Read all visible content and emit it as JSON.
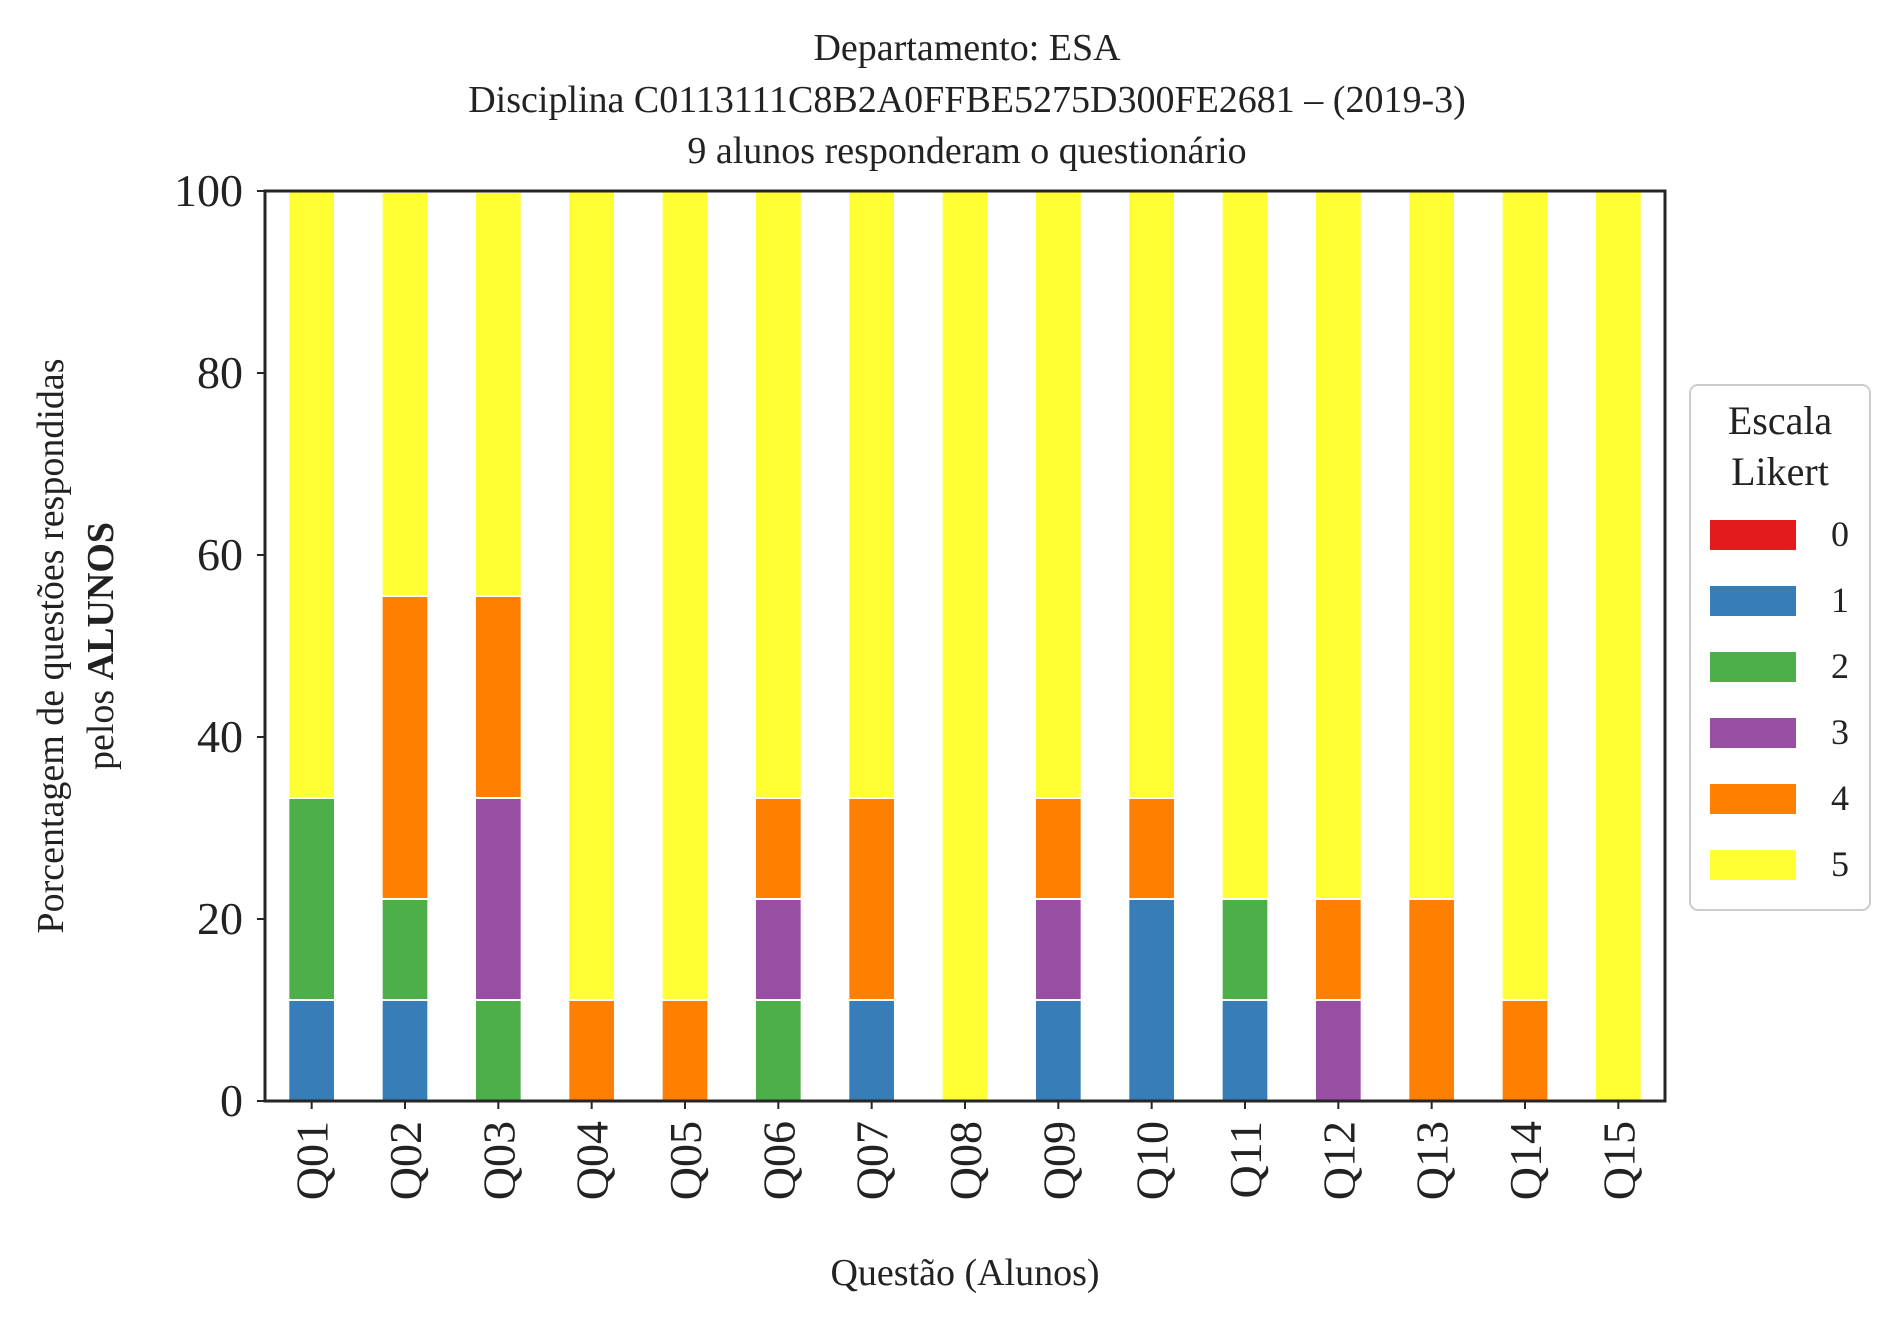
{
  "chart_data": {
    "type": "bar",
    "stacked": true,
    "title_lines": [
      "Departamento: ESA",
      "Disciplina C0113111C8B2A0FFBE5275D300FE2681 – (2019-3)",
      "9 alunos responderam o questionário"
    ],
    "xlabel": "Questão (Alunos)",
    "ylabel_line1": "Porcentagem de questões respondidas",
    "ylabel_line2_prefix": "pelos ",
    "ylabel_line2_bold": "ALUNOS",
    "ylim": [
      0,
      100
    ],
    "yticks": [
      0,
      20,
      40,
      60,
      80,
      100
    ],
    "grid": false,
    "categories": [
      "Q01",
      "Q02",
      "Q03",
      "Q04",
      "Q05",
      "Q06",
      "Q07",
      "Q08",
      "Q09",
      "Q10",
      "Q11",
      "Q12",
      "Q13",
      "Q14",
      "Q15"
    ],
    "legend": {
      "title_lines": [
        "Escala",
        "Likert"
      ],
      "placement": "right-center"
    },
    "series": [
      {
        "name": "0",
        "color": "#e41a1c",
        "values": [
          0,
          0,
          0,
          0,
          0,
          0,
          0,
          0,
          0,
          0,
          0,
          0,
          0,
          0,
          0
        ]
      },
      {
        "name": "1",
        "color": "#377eb8",
        "values": [
          11.1,
          11.1,
          0,
          0,
          0,
          0,
          11.1,
          0,
          11.1,
          22.2,
          11.1,
          0,
          0,
          0,
          0
        ]
      },
      {
        "name": "2",
        "color": "#4daf4a",
        "values": [
          22.2,
          11.1,
          11.1,
          0,
          0,
          11.1,
          0,
          0,
          0,
          0,
          11.1,
          0,
          0,
          0,
          0
        ]
      },
      {
        "name": "3",
        "color": "#984ea3",
        "values": [
          0,
          0,
          22.2,
          0,
          0,
          11.1,
          0,
          0,
          11.1,
          0,
          0,
          11.1,
          0,
          0,
          0
        ]
      },
      {
        "name": "4",
        "color": "#ff7f00",
        "values": [
          0,
          33.3,
          22.2,
          11.1,
          11.1,
          11.1,
          22.2,
          0,
          11.1,
          11.1,
          0,
          11.1,
          22.2,
          11.1,
          0
        ]
      },
      {
        "name": "5",
        "color": "#ffff33",
        "values": [
          66.7,
          44.4,
          44.4,
          88.9,
          88.9,
          66.7,
          66.7,
          100,
          66.7,
          66.7,
          77.8,
          77.8,
          77.8,
          88.9,
          100
        ]
      }
    ]
  }
}
